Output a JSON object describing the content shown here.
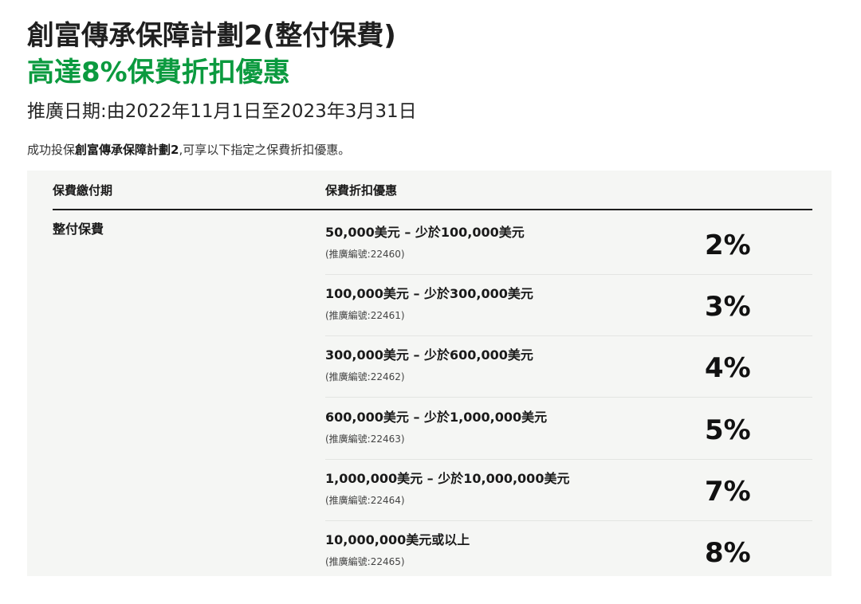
{
  "header": {
    "title_line1": "創富傳承保障計劃2(整付保費)",
    "title_line2": "高達8%保費折扣優惠",
    "promo_period": "推廣日期:由2022年11月1日至2023年3月31日"
  },
  "intro": {
    "prefix": "成功投保",
    "plan_name": "創富傳承保障計劃2",
    "suffix": ",可享以下指定之保費折扣優惠。"
  },
  "table": {
    "col_payment_header": "保費繳付期",
    "col_discount_header": "保費折扣優惠",
    "payment_type": "整付保費",
    "tiers": [
      {
        "range": "50,000美元 – 少於100,000美元",
        "code": "(推廣編號:22460)",
        "discount": "2%"
      },
      {
        "range": "100,000美元 – 少於300,000美元",
        "code": "(推廣編號:22461)",
        "discount": "3%"
      },
      {
        "range": "300,000美元 – 少於600,000美元",
        "code": "(推廣編號:22462)",
        "discount": "4%"
      },
      {
        "range": "600,000美元 – 少於1,000,000美元",
        "code": "(推廣編號:22463)",
        "discount": "5%"
      },
      {
        "range": "1,000,000美元 – 少於10,000,000美元",
        "code": "(推廣編號:22464)",
        "discount": "7%"
      },
      {
        "range": "10,000,000美元或以上",
        "code": "(推廣編號:22465)",
        "discount": "8%"
      }
    ]
  },
  "colors": {
    "accent_green": "#0b9a3f",
    "panel_background": "#f5f6f4"
  }
}
